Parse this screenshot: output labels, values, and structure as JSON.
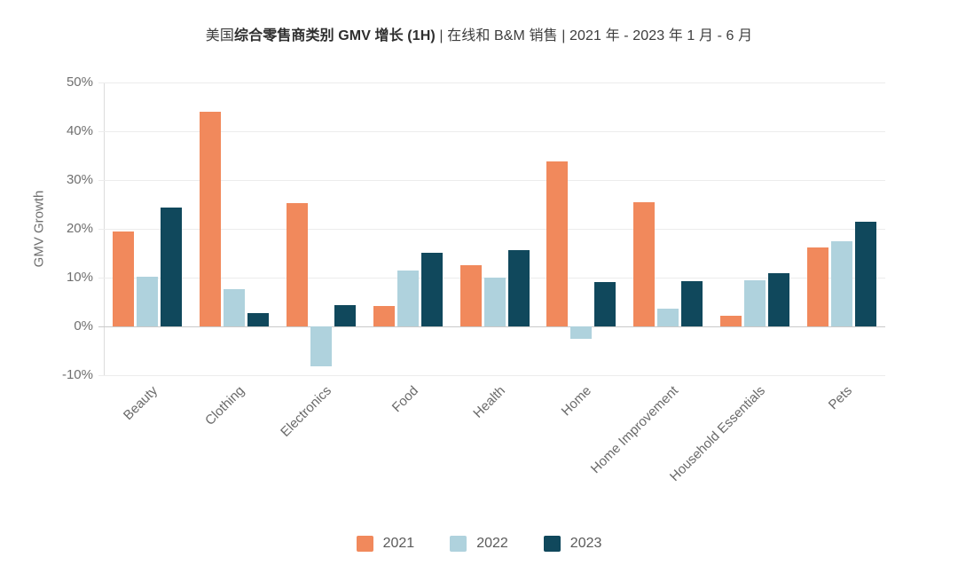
{
  "title": {
    "prefix": "美国",
    "bold": "综合零售商类别 GMV 增长 (1H)",
    "suffix": " | 在线和 B&M 销售 | 2021 年 - 2023 年 1 月 - 6 月"
  },
  "chart_data": {
    "type": "bar",
    "title": "美国综合零售商类别 GMV 增长 (1H) | 在线和 B&M 销售 | 2021 年 - 2023 年 1 月 - 6 月",
    "xlabel": "",
    "ylabel": "GMV Growth",
    "categories": [
      "Beauty",
      "Clothing",
      "Electronics",
      "Food",
      "Health",
      "Home",
      "Home Improvement",
      "Household Essentials",
      "Pets"
    ],
    "series": [
      {
        "name": "2021",
        "color": "#F1895C",
        "values": [
          19.5,
          44.0,
          25.3,
          4.1,
          12.6,
          33.8,
          25.4,
          2.1,
          16.1
        ]
      },
      {
        "name": "2022",
        "color": "#AFD2DD",
        "values": [
          10.2,
          7.6,
          -8.1,
          11.5,
          10.0,
          -2.6,
          3.7,
          9.5,
          17.4
        ]
      },
      {
        "name": "2023",
        "color": "#10485C",
        "values": [
          24.4,
          2.8,
          4.3,
          15.1,
          15.7,
          9.1,
          9.3,
          10.9,
          21.4
        ]
      }
    ],
    "ylim": [
      -10,
      50
    ],
    "yticks": [
      50,
      40,
      30,
      20,
      10,
      0,
      -10
    ],
    "ytick_suffix": "%",
    "grid": true,
    "legend_position": "bottom"
  },
  "colors": {
    "background": "#ffffff",
    "gridline": "#ececec",
    "zero_line": "#c9c9c9",
    "axis_line": "#dcdcdc",
    "tick_text": "#6f6f6f",
    "title_text": "#3d3d3d"
  }
}
